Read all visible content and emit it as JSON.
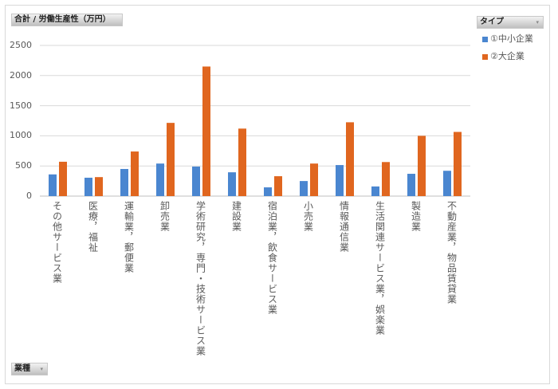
{
  "chart_data": {
    "type": "bar",
    "title": "合計 / 労働生産性（万円）",
    "xlabel": "業種",
    "legend_title": "タイプ",
    "legend_position": "top-right",
    "ylim": [
      0,
      2500
    ],
    "yticks": [
      "0",
      "500",
      "1000",
      "1500",
      "2000",
      "2500"
    ],
    "grid": true,
    "categories": [
      "その他サービス業",
      "医療，福祉",
      "運輸業，郵便業",
      "卸売業",
      "学術研究，専門・技術サービス業",
      "建設業",
      "宿泊業，飲食サービス業",
      "小売業",
      "情報通信業",
      "生活関連サービス業，娯楽業",
      "製造業",
      "不動産業，物品賃貸業"
    ],
    "series": [
      {
        "name": "①中小企業",
        "color": "#4a86d0",
        "values": [
          360,
          305,
          450,
          540,
          490,
          395,
          145,
          250,
          515,
          160,
          370,
          420
        ]
      },
      {
        "name": "②大企業",
        "color": "#e0661f",
        "values": [
          570,
          315,
          740,
          1215,
          2150,
          1120,
          330,
          540,
          1225,
          565,
          1000,
          1065
        ]
      }
    ]
  }
}
